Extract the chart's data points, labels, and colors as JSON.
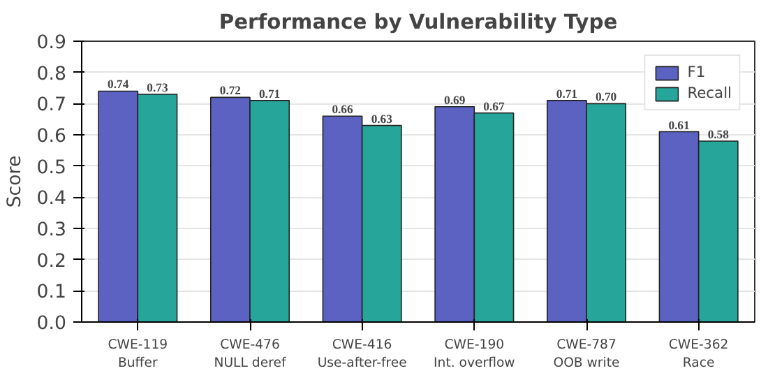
{
  "chart_data": {
    "type": "bar",
    "title": "Performance by Vulnerability Type",
    "ylabel": "Score",
    "categories": [
      "CWE-119\nBuffer",
      "CWE-476\nNULL deref",
      "CWE-416\nUse-after-free",
      "CWE-190\nInt. overflow",
      "CWE-787\nOOB write",
      "CWE-362\nRace"
    ],
    "series": [
      {
        "name": "F1",
        "color": "#5b62c2",
        "values": [
          0.74,
          0.72,
          0.66,
          0.69,
          0.71,
          0.61
        ],
        "value_labels": [
          "0.74",
          "0.72",
          "0.66",
          "0.69",
          "0.71",
          "0.61"
        ]
      },
      {
        "name": "Recall",
        "color": "#26a69a",
        "values": [
          0.73,
          0.71,
          0.63,
          0.67,
          0.7,
          0.58
        ],
        "value_labels": [
          "0.73",
          "0.71",
          "0.63",
          "0.67",
          "0.70",
          "0.58"
        ]
      }
    ],
    "ylim": [
      0,
      0.9
    ],
    "yticks": [
      {
        "value": 0,
        "label": "0.0"
      },
      0.1,
      0.2,
      0.3,
      0.4,
      0.5,
      0.6,
      0.7,
      0.8,
      0.9
    ],
    "grid": "y",
    "legend": "top right"
  }
}
